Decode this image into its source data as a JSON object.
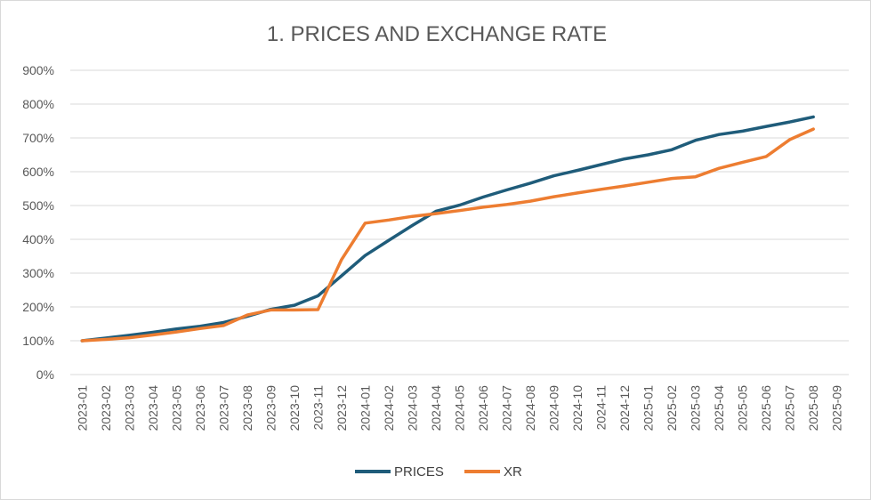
{
  "chart_data": {
    "type": "line",
    "title": "1. PRICES AND EXCHANGE RATE",
    "xlabel": "",
    "ylabel": "",
    "ylim": [
      0,
      900
    ],
    "y_unit": "%",
    "y_ticks": [
      0,
      100,
      200,
      300,
      400,
      500,
      600,
      700,
      800,
      900
    ],
    "y_tick_labels": [
      "0%",
      "100%",
      "200%",
      "300%",
      "400%",
      "500%",
      "600%",
      "700%",
      "800%",
      "900%"
    ],
    "grid": true,
    "legend_position": "bottom",
    "categories": [
      "2023-01",
      "2023-02",
      "2023-03",
      "2023-04",
      "2023-05",
      "2023-06",
      "2023-07",
      "2023-08",
      "2023-09",
      "2023-10",
      "2023-11",
      "2023-12",
      "2024-01",
      "2024-02",
      "2024-03",
      "2024-04",
      "2024-05",
      "2024-06",
      "2024-07",
      "2024-08",
      "2024-09",
      "2024-10",
      "2024-11",
      "2024-12",
      "2025-01",
      "2025-02",
      "2025-03",
      "2025-04",
      "2025-05",
      "2025-06",
      "2025-07",
      "2025-08",
      "2025-09"
    ],
    "series": [
      {
        "name": "PRICES",
        "color": "#1f5c7a",
        "values": [
          100,
          108,
          116,
          125,
          135,
          143,
          154,
          172,
          193,
          205,
          233,
          292,
          352,
          397,
          441,
          483,
          501,
          525,
          546,
          566,
          588,
          604,
          621,
          638,
          650,
          665,
          693,
          710,
          720,
          734,
          747,
          762,
          null
        ]
      },
      {
        "name": "XR",
        "color": "#ed7d31",
        "values": [
          100,
          104,
          109,
          117,
          126,
          136,
          145,
          176,
          191,
          191,
          192,
          340,
          448,
          457,
          468,
          476,
          485,
          495,
          503,
          513,
          526,
          537,
          548,
          558,
          569,
          580,
          585,
          610,
          628,
          645,
          695,
          726,
          null
        ]
      }
    ]
  }
}
